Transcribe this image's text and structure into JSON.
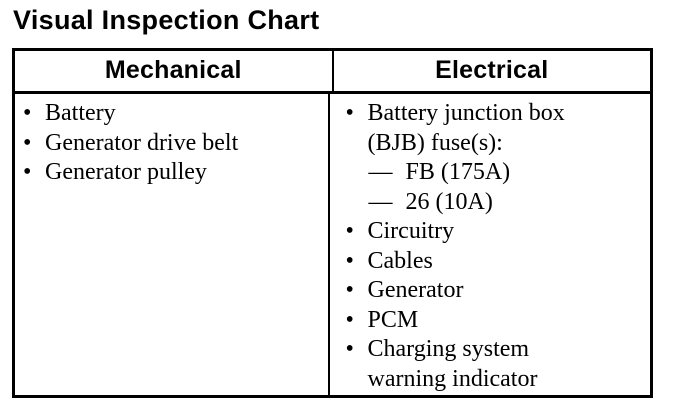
{
  "page": {
    "title": "Visual Inspection Chart"
  },
  "colors": {
    "text": "#000000",
    "background": "#ffffff",
    "border": "#000000"
  },
  "glyphs": {
    "bullet": "•"
  },
  "table": {
    "columns": [
      {
        "header": "Mechanical",
        "items": [
          {
            "text": "Battery"
          },
          {
            "text": "Generator drive belt"
          },
          {
            "text": "Generator pulley"
          }
        ]
      },
      {
        "header": "Electrical",
        "items": [
          {
            "text": "Battery junction box (BJB) fuse(s):",
            "sub_items": [
              {
                "dash": "—",
                "label": "FB (175A)"
              },
              {
                "dash": "—",
                "label": "26 (10A)"
              }
            ]
          },
          {
            "text": "Circuitry"
          },
          {
            "text": "Cables"
          },
          {
            "text": "Generator"
          },
          {
            "text": "PCM"
          },
          {
            "text": "Charging system warning indicator"
          }
        ]
      }
    ]
  }
}
